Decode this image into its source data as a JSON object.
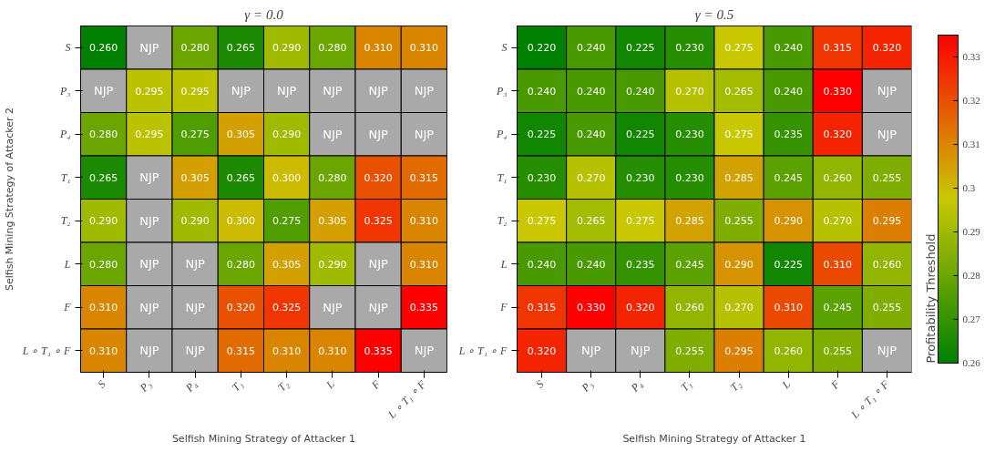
{
  "chart_data": [
    {
      "type": "heatmap",
      "title": "γ = 0.0",
      "xlabel": "Selfish Mining Strategy of Attacker 1",
      "ylabel": "Selfish Mining Strategy of Attacker 2",
      "clabel": "Profitability Threshold",
      "categories": [
        "S",
        "P₃",
        "P₄",
        "T₁",
        "T₂",
        "L",
        "F",
        "L ∘ T₁ ∘ F"
      ],
      "y_categories": [
        "S",
        "P₃",
        "P₄",
        "T₁",
        "T₂",
        "L",
        "F",
        "L ∘ T₁ ∘ F"
      ],
      "clim": [
        0.26,
        0.335
      ],
      "cticks": [
        0.26,
        0.27,
        0.28,
        0.29,
        0.3,
        0.31,
        0.32,
        0.33
      ],
      "cells": [
        [
          0.26,
          null,
          0.28,
          0.265,
          0.29,
          0.28,
          0.31,
          0.31
        ],
        [
          null,
          0.295,
          0.295,
          null,
          null,
          null,
          null,
          null
        ],
        [
          0.28,
          0.295,
          0.275,
          0.305,
          0.29,
          null,
          null,
          null
        ],
        [
          0.265,
          null,
          0.305,
          0.265,
          0.3,
          0.28,
          0.32,
          0.315
        ],
        [
          0.29,
          null,
          0.29,
          0.3,
          0.275,
          0.305,
          0.325,
          0.31
        ],
        [
          0.28,
          null,
          null,
          0.28,
          0.305,
          0.29,
          null,
          0.31
        ],
        [
          0.31,
          null,
          null,
          0.32,
          0.325,
          null,
          null,
          0.335
        ],
        [
          0.31,
          null,
          null,
          0.315,
          0.31,
          0.31,
          0.335,
          null
        ]
      ],
      "cell_labels": [
        [
          "0.260",
          "NJP",
          "0.280",
          "0.265",
          "0.290",
          "0.280",
          "0.310",
          "0.310"
        ],
        [
          "NJP",
          "0.295",
          "0.295",
          "NJP",
          "NJP",
          "NJP",
          "NJP",
          "NJP"
        ],
        [
          "0.280",
          "0.295",
          "0.275",
          "0.305",
          "0.290",
          "NJP",
          "NJP",
          "NJP"
        ],
        [
          "0.265",
          "NJP",
          "0.305",
          "0.265",
          "0.300",
          "0.280",
          "0.320",
          "0.315"
        ],
        [
          "0.290",
          "NJP",
          "0.290",
          "0.300",
          "0.275",
          "0.305",
          "0.325",
          "0.310"
        ],
        [
          "0.280",
          "NJP",
          "NJP",
          "0.280",
          "0.305",
          "0.290",
          "NJP",
          "0.310"
        ],
        [
          "0.310",
          "NJP",
          "NJP",
          "0.320",
          "0.325",
          "NJP",
          "NJP",
          "0.335"
        ],
        [
          "0.310",
          "NJP",
          "NJP",
          "0.315",
          "0.310",
          "0.310",
          "0.335",
          "NJP"
        ]
      ]
    },
    {
      "type": "heatmap",
      "title": "γ = 0.5",
      "xlabel": "Selfish Mining Strategy of Attacker 1",
      "categories": [
        "S",
        "P₃",
        "P₄",
        "T₁",
        "T₂",
        "L",
        "F",
        "L ∘ T₁ ∘ F"
      ],
      "y_categories": [
        "S",
        "P₃",
        "P₄",
        "T₁",
        "T₂",
        "L",
        "F",
        "L ∘ T₁ ∘ F"
      ],
      "cells": [
        [
          0.22,
          0.24,
          0.225,
          0.23,
          0.275,
          0.24,
          0.315,
          0.32
        ],
        [
          0.24,
          0.24,
          0.24,
          0.27,
          0.265,
          0.24,
          0.33,
          null
        ],
        [
          0.225,
          0.24,
          0.225,
          0.23,
          0.275,
          0.235,
          0.32,
          null
        ],
        [
          0.23,
          0.27,
          0.23,
          0.23,
          0.285,
          0.245,
          0.26,
          0.255
        ],
        [
          0.275,
          0.265,
          0.275,
          0.285,
          0.255,
          0.29,
          0.27,
          0.295
        ],
        [
          0.24,
          0.24,
          0.235,
          0.245,
          0.29,
          0.225,
          0.31,
          0.26
        ],
        [
          0.315,
          0.33,
          0.32,
          0.26,
          0.27,
          0.31,
          0.245,
          0.255
        ],
        [
          0.32,
          null,
          null,
          0.255,
          0.295,
          0.26,
          0.255,
          null
        ]
      ],
      "cell_labels": [
        [
          "0.220",
          "0.240",
          "0.225",
          "0.230",
          "0.275",
          "0.240",
          "0.315",
          "0.320"
        ],
        [
          "0.240",
          "0.240",
          "0.240",
          "0.270",
          "0.265",
          "0.240",
          "0.330",
          "NJP"
        ],
        [
          "0.225",
          "0.240",
          "0.225",
          "0.230",
          "0.275",
          "0.235",
          "0.320",
          "NJP"
        ],
        [
          "0.230",
          "0.270",
          "0.230",
          "0.230",
          "0.285",
          "0.245",
          "0.260",
          "0.255"
        ],
        [
          "0.275",
          "0.265",
          "0.275",
          "0.285",
          "0.255",
          "0.290",
          "0.270",
          "0.295"
        ],
        [
          "0.240",
          "0.240",
          "0.235",
          "0.245",
          "0.290",
          "0.225",
          "0.310",
          "0.260"
        ],
        [
          "0.315",
          "0.330",
          "0.320",
          "0.260",
          "0.270",
          "0.310",
          "0.245",
          "0.255"
        ],
        [
          "0.320",
          "NJP",
          "NJP",
          "0.255",
          "0.295",
          "0.260",
          "0.255",
          "NJP"
        ]
      ]
    }
  ]
}
